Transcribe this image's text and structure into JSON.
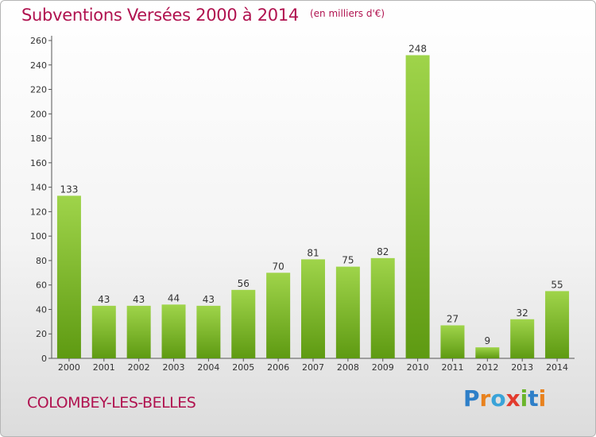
{
  "header": {
    "title": "Subventions Versées 2000 à 2014",
    "subtitle": "(en milliers d'€)"
  },
  "footer": {
    "commune": "COLOMBEY-LES-BELLES",
    "brand": "Proxiti"
  },
  "colors": {
    "title": "#b0124f",
    "bar_light": "#9fd44a",
    "bar_dark": "#5e9a12",
    "brand_letters": [
      "#2e7fc8",
      "#e8821e",
      "#3aa3d8",
      "#e23b2e",
      "#6bb52b",
      "#2e7fc8",
      "#e8821e"
    ]
  },
  "chart_data": {
    "type": "bar",
    "title": "Subventions Versées 2000 à 2014",
    "subtitle": "(en milliers d'€)",
    "categories": [
      "2000",
      "2001",
      "2002",
      "2003",
      "2004",
      "2005",
      "2006",
      "2007",
      "2008",
      "2009",
      "2010",
      "2011",
      "2012",
      "2013",
      "2014"
    ],
    "values": [
      133,
      43,
      43,
      44,
      43,
      56,
      70,
      81,
      75,
      82,
      248,
      27,
      9,
      32,
      55
    ],
    "ylim": [
      0,
      260
    ],
    "yticks": [
      0,
      20,
      40,
      60,
      80,
      100,
      120,
      140,
      160,
      180,
      200,
      220,
      240,
      260
    ],
    "grid": false,
    "legend": "none"
  }
}
